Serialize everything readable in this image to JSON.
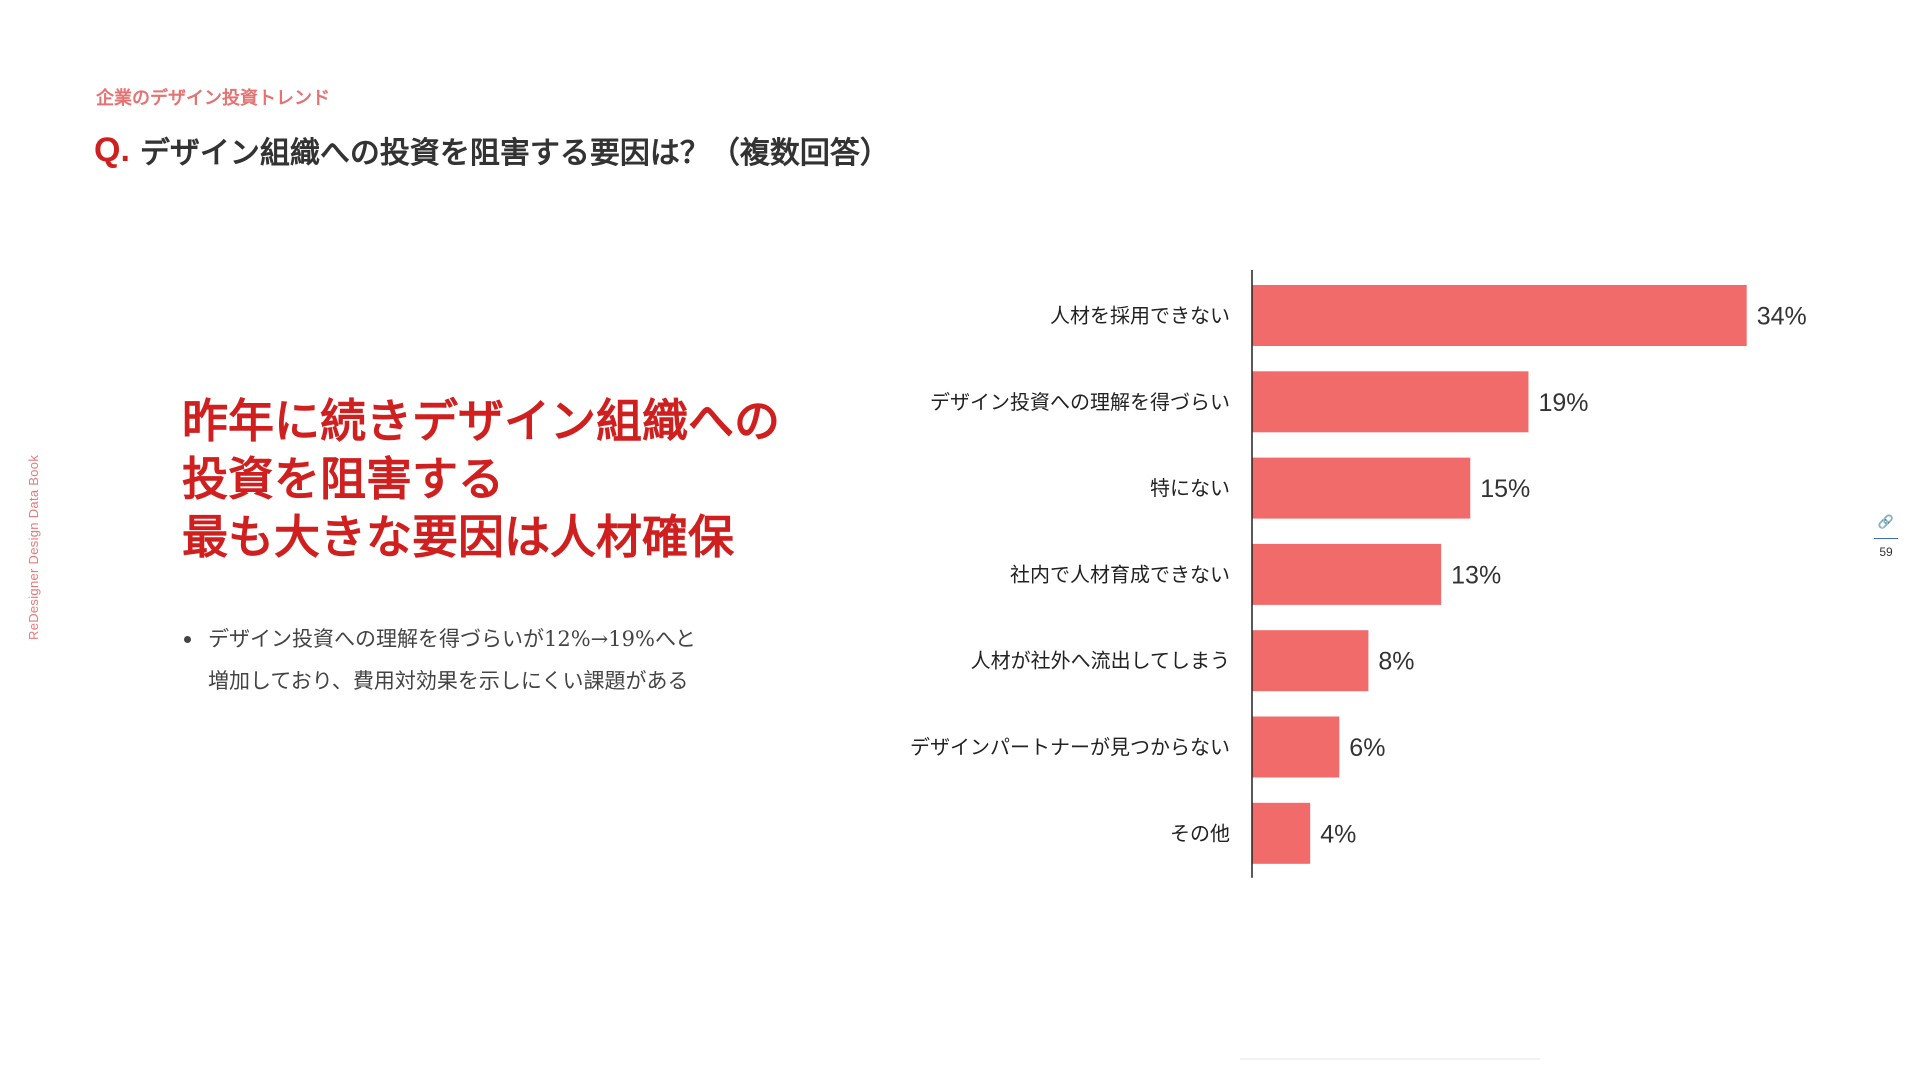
{
  "side_label": "ReDesigner Design Data Book",
  "category": "企業のデザイン投資トレンド",
  "question": {
    "mark": "Q.",
    "text": "デザイン組織への投資を阻害する要因は？（複数回答）"
  },
  "headline": [
    "昨年に続きデザイン組織への",
    "投資を阻害する",
    "最も大きな要因は人材確保"
  ],
  "bullets": [
    {
      "line1": "デザイン投資への理解を得づらいが12%→19%へと",
      "line2": "増加しており、費用対効果を示しにくい課題がある"
    }
  ],
  "page": {
    "icon": "link-icon",
    "number": "59"
  },
  "colors": {
    "accent": "#cf1f1f",
    "bar": "#f26b6b",
    "category": "#e57373"
  },
  "chart_data": {
    "type": "bar",
    "orientation": "horizontal",
    "categories": [
      "人材を採用できない",
      "デザイン投資への理解を得づらい",
      "特にない",
      "社内で人材育成できない",
      "人材が社外へ流出してしまう",
      "デザインパートナーが見つからない",
      "その他"
    ],
    "values": [
      34,
      19,
      15,
      13,
      8,
      6,
      4
    ],
    "value_labels": [
      "34%",
      "19%",
      "15%",
      "13%",
      "8%",
      "6%",
      "4%"
    ],
    "unit": "%",
    "xlim": [
      0,
      40
    ],
    "grid": false,
    "legend": "none"
  }
}
